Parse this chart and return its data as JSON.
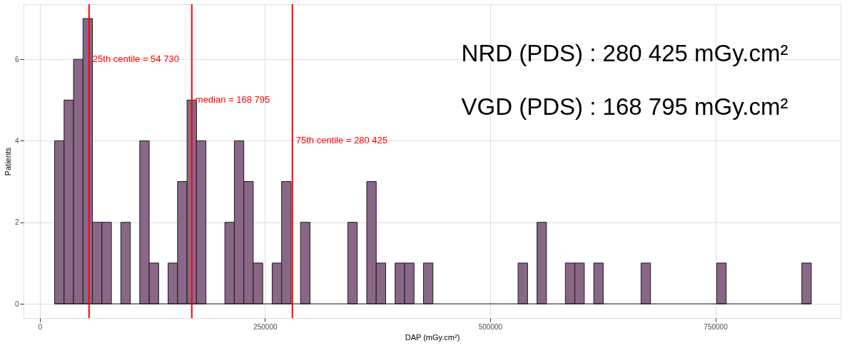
{
  "chart_data": {
    "type": "histogram",
    "xlabel": "DAP (mGy.cm²)",
    "ylabel": "Patients",
    "bins": [
      16500,
      27000,
      37500,
      48000,
      58500,
      69000,
      79500,
      90000,
      100500,
      111000,
      121500,
      132000,
      142500,
      153000,
      163500,
      174000,
      184500,
      195000,
      205500,
      216000,
      226500,
      237000,
      247500,
      258000,
      268500,
      279000,
      289500,
      300000,
      310500,
      321000,
      331500,
      342000,
      352500,
      363000,
      373500,
      384000,
      394500,
      405000,
      415500,
      426000,
      436500,
      447000,
      457500,
      468000,
      478500,
      489000,
      499500,
      510000,
      520500,
      531000,
      541500,
      552000,
      562500,
      573000,
      583500,
      594000,
      604500,
      615000,
      625500,
      636000,
      646500,
      657000,
      667500,
      678000,
      688500,
      699000,
      709500,
      720000,
      730500,
      741000,
      751500,
      762000,
      772500,
      783000,
      793500,
      804000,
      814500,
      825000,
      835500,
      846000,
      856500
    ],
    "values": [
      4,
      5,
      6,
      7,
      2,
      2,
      0,
      2,
      0,
      4,
      1,
      0,
      1,
      3,
      5,
      4,
      0,
      0,
      2,
      4,
      3,
      1,
      0,
      1,
      3,
      0,
      2,
      0,
      0,
      0,
      0,
      2,
      0,
      3,
      1,
      0,
      1,
      1,
      0,
      1,
      0,
      0,
      0,
      0,
      0,
      0,
      0,
      0,
      0,
      1,
      0,
      2,
      0,
      0,
      1,
      1,
      0,
      1,
      0,
      0,
      0,
      0,
      1,
      0,
      0,
      0,
      0,
      0,
      0,
      0,
      1,
      0,
      0,
      0,
      0,
      0,
      0,
      0,
      0,
      1
    ],
    "color": "#8a6688",
    "xlim": [
      -18000,
      889000
    ],
    "xticks": [
      0,
      250000,
      500000,
      750000
    ],
    "ylim": [
      -0.35,
      7.35
    ],
    "yticks": [
      0,
      2,
      4,
      6
    ],
    "grid": true,
    "ref_lines": [
      {
        "axis": "x",
        "value": 54730,
        "label": "25th centile = 54 730",
        "color": "#ff0000"
      },
      {
        "axis": "x",
        "value": 168795,
        "label": "median = 168 795",
        "color": "#ff0000"
      },
      {
        "axis": "x",
        "value": 280425,
        "label": "75th centile = 280 425",
        "color": "#ff0000"
      }
    ],
    "annotations": [
      "NRD (PDS) : 280 425 mGy.cm²",
      "VGD (PDS) : 168 795 mGy.cm²"
    ]
  }
}
